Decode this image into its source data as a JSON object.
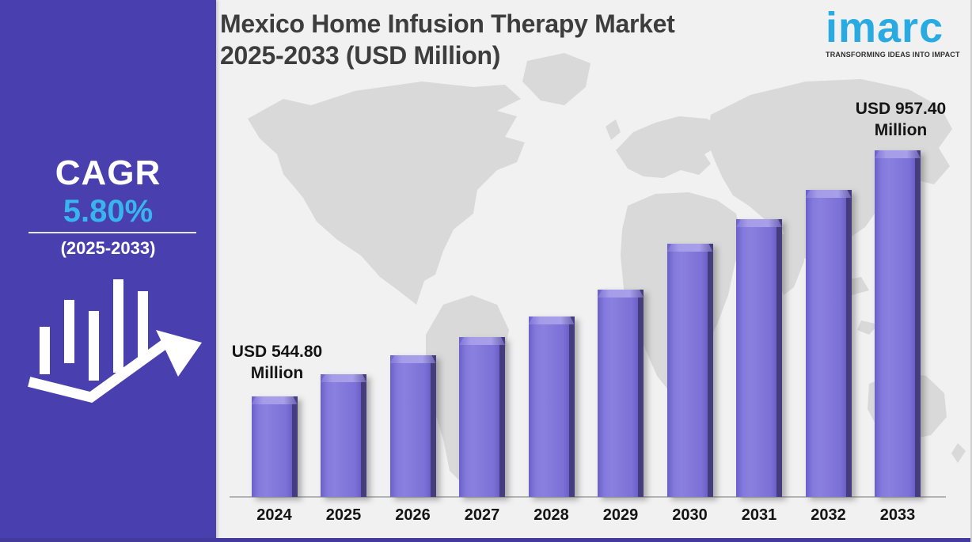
{
  "title": {
    "line1": "Mexico Home Infusion Therapy Market",
    "line2": "2025-2033 (USD Million)"
  },
  "logo": {
    "wordmark": "imarc",
    "tagline": "TRANSFORMING IDEAS INTO IMPACT",
    "brand_color": "#29abe2"
  },
  "sidebar": {
    "cagr_label": "CAGR",
    "cagr_value": "5.80%",
    "cagr_period": "(2025-2033)",
    "background_color": "#4a3fae",
    "value_color": "#38b5ee",
    "icon": "bar-chart-with-up-trend-arrow"
  },
  "chart_data": {
    "type": "bar",
    "title": "Mexico Home Infusion Therapy Market 2025-2033 (USD Million)",
    "unit": "USD Million",
    "categories": [
      "2024",
      "2025",
      "2026",
      "2027",
      "2028",
      "2029",
      "2030",
      "2031",
      "2032",
      "2033"
    ],
    "values": [
      544.8,
      582,
      614,
      644,
      679,
      724,
      801,
      842,
      891,
      957.4
    ],
    "labeled_values": {
      "2024": 544.8,
      "2033": 957.4
    },
    "start_annotation": {
      "year": "2024",
      "lines": [
        "USD 544.80",
        "Million"
      ]
    },
    "end_annotation": {
      "year": "2033",
      "lines": [
        "USD 957.40",
        "Million"
      ]
    },
    "bar_color": "#7b70d7",
    "bar_highlight_color": "#a59de9",
    "bar_edge_color": "#453d7e",
    "background_watermark": "world-map",
    "map_color": "#d9d9d9",
    "panel_background": "#f1f1f2",
    "y_axis": {
      "shown": false,
      "gridlines": false,
      "visible_baseline_value": 376,
      "max_value": 980
    },
    "x_axis": {
      "labels_shown": true,
      "line_color": "#b3b3b3"
    },
    "legend": "none"
  }
}
